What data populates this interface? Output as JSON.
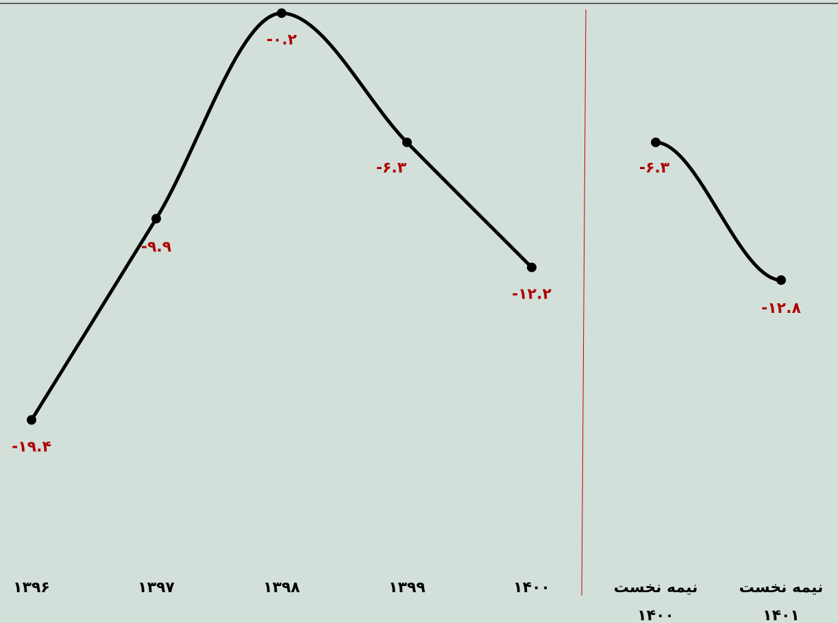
{
  "chart_data": {
    "type": "line",
    "ylim": [
      -20,
      0
    ],
    "grid": false,
    "legend": "none",
    "colors": {
      "background": "#d3e0da",
      "line": "#000000",
      "data_label": "#b00000",
      "separator": "#c00000",
      "tick_label": "#000000"
    },
    "series": [
      {
        "categories": [
          "۱۳۹۶",
          "۱۳۹۷",
          "۱۳۹۸",
          "۱۳۹۹",
          "۱۴۰۰"
        ],
        "values": [
          -19.4,
          -9.9,
          -0.2,
          -6.3,
          -12.2
        ],
        "labels": [
          "-۱۹.۴",
          "-۹.۹",
          "-۰.۲",
          "-۶.۳",
          "-۱۲.۲"
        ]
      },
      {
        "categories": [
          [
            "نیمه نخست",
            "۱۴۰۰"
          ],
          [
            "نیمه نخست",
            "۱۴۰۱"
          ]
        ],
        "values": [
          -6.3,
          -12.8
        ],
        "labels": [
          "-۶.۳",
          "-۱۲.۸"
        ]
      }
    ]
  }
}
